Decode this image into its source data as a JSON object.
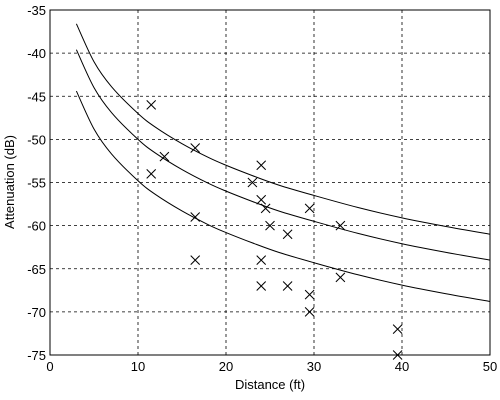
{
  "chart_data": {
    "type": "scatter",
    "title": "",
    "xlabel": "Distance (ft)",
    "ylabel": "Attenuation (dB)",
    "xlim": [
      0,
      50
    ],
    "ylim": [
      -75,
      -35
    ],
    "xticks": [
      0,
      10,
      20,
      30,
      40,
      50
    ],
    "yticks": [
      -35,
      -40,
      -45,
      -50,
      -55,
      -60,
      -65,
      -70,
      -75
    ],
    "grid": true,
    "series": [
      {
        "marker": "x",
        "points": [
          [
            11.5,
            -46
          ],
          [
            11.5,
            -54
          ],
          [
            13,
            -52
          ],
          [
            16.5,
            -51
          ],
          [
            16.5,
            -59
          ],
          [
            16.5,
            -64
          ],
          [
            23,
            -55
          ],
          [
            24,
            -53
          ],
          [
            24,
            -57
          ],
          [
            24,
            -64
          ],
          [
            24,
            -67
          ],
          [
            24.5,
            -58
          ],
          [
            25,
            -60
          ],
          [
            27,
            -61
          ],
          [
            27,
            -67
          ],
          [
            29.5,
            -58
          ],
          [
            29.5,
            -68
          ],
          [
            29.5,
            -70
          ],
          [
            33,
            -60
          ],
          [
            33,
            -66
          ],
          [
            39.5,
            -72
          ],
          [
            39.5,
            -75
          ]
        ]
      }
    ],
    "curves": [
      {
        "x": [
          3,
          5,
          7,
          10,
          12,
          15,
          18,
          20,
          23,
          26,
          30,
          35,
          40,
          45,
          50
        ],
        "y": [
          -36.6,
          -41.0,
          -43.9,
          -47.0,
          -48.6,
          -50.5,
          -52.1,
          -53.0,
          -54.2,
          -55.3,
          -56.5,
          -57.9,
          -59.1,
          -60.1,
          -61.0
        ]
      },
      {
        "x": [
          3,
          5,
          7,
          10,
          12,
          15,
          18,
          20,
          23,
          26,
          30,
          35,
          40,
          45,
          50
        ],
        "y": [
          -39.6,
          -44.0,
          -46.9,
          -50.0,
          -51.6,
          -53.5,
          -55.1,
          -56.0,
          -57.2,
          -58.3,
          -59.5,
          -60.9,
          -62.1,
          -63.1,
          -64.0
        ]
      },
      {
        "x": [
          3,
          5,
          7,
          10,
          12,
          15,
          18,
          20,
          23,
          26,
          30,
          35,
          40,
          45,
          50
        ],
        "y": [
          -44.4,
          -48.8,
          -51.7,
          -54.8,
          -56.4,
          -58.3,
          -59.9,
          -60.8,
          -62.0,
          -63.1,
          -64.3,
          -65.7,
          -66.9,
          -67.9,
          -68.8
        ]
      }
    ]
  }
}
